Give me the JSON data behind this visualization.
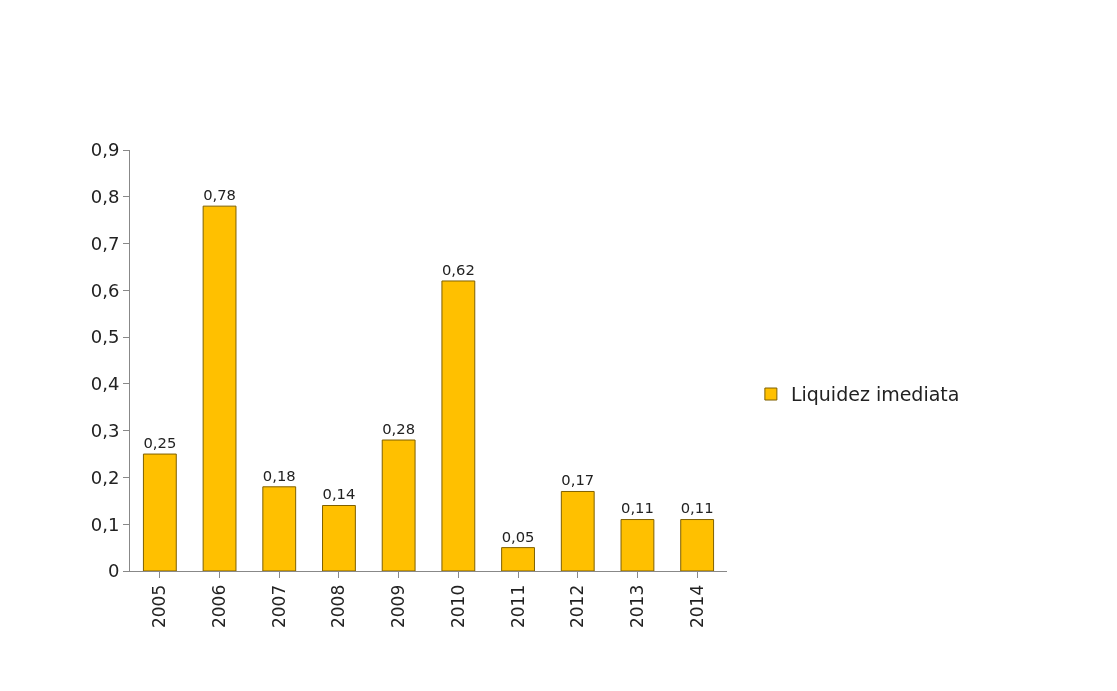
{
  "chart_data": {
    "type": "bar",
    "categories": [
      "2005",
      "2006",
      "2007",
      "2008",
      "2009",
      "2010",
      "2011",
      "2012",
      "2013",
      "2014"
    ],
    "series": [
      {
        "name": "Liquidez imediata",
        "color": "#ffc000",
        "values": [
          0.25,
          0.78,
          0.18,
          0.14,
          0.28,
          0.62,
          0.05,
          0.17,
          0.11,
          0.11
        ],
        "value_labels": [
          "0,25",
          "0,78",
          "0,18",
          "0,14",
          "0,28",
          "0,62",
          "0,05",
          "0,17",
          "0,11",
          "0,11"
        ]
      }
    ],
    "ylim": [
      0,
      0.9
    ],
    "yticks": [
      {
        "value": 0,
        "label": "0"
      },
      {
        "value": 0.1,
        "label": "0,1"
      },
      {
        "value": 0.2,
        "label": "0,2"
      },
      {
        "value": 0.3,
        "label": "0,3"
      },
      {
        "value": 0.4,
        "label": "0,4"
      },
      {
        "value": 0.5,
        "label": "0,5"
      },
      {
        "value": 0.6,
        "label": "0,6"
      },
      {
        "value": 0.7,
        "label": "0,7"
      },
      {
        "value": 0.8,
        "label": "0,8"
      },
      {
        "value": 0.9,
        "label": "0,9"
      }
    ],
    "legend": "right"
  }
}
